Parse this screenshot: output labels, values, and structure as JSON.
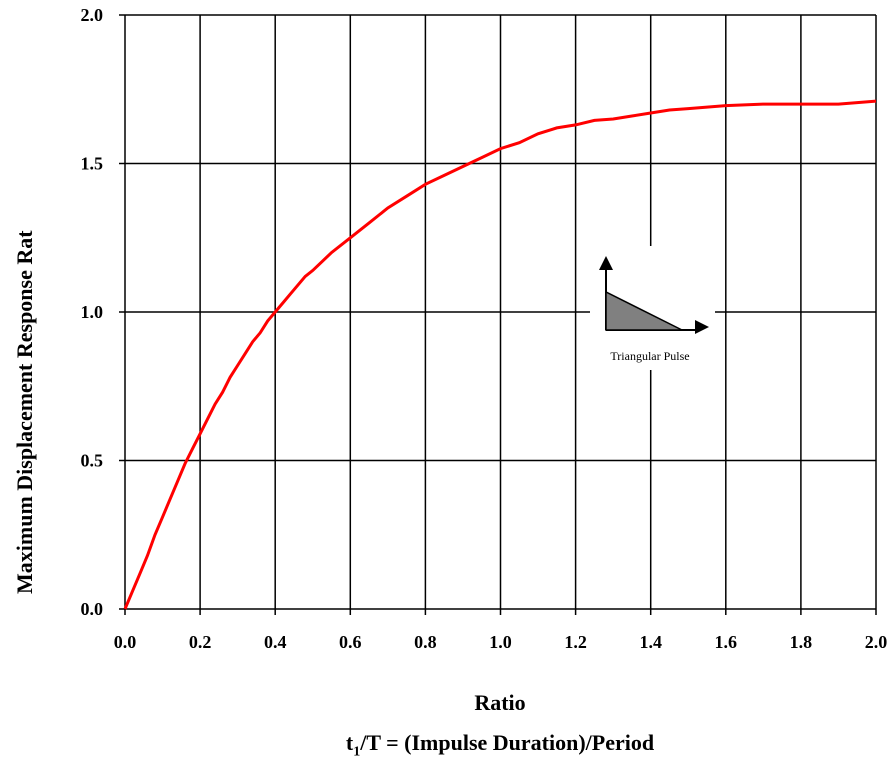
{
  "chart_data": {
    "type": "line",
    "title": "",
    "xlabel": "Ratio",
    "xlabel_line2": {
      "prefix": "t",
      "subscript": "1",
      "rest": "/T = (Impulse Duration)/Period"
    },
    "ylabel": "Maximum Displacement Response Rat",
    "xlim": [
      0,
      2
    ],
    "ylim": [
      0,
      2
    ],
    "x_ticks": [
      "0.0",
      "0.2",
      "0.4",
      "0.6",
      "0.8",
      "1.0",
      "1.2",
      "1.4",
      "1.6",
      "1.8",
      "2.0"
    ],
    "y_ticks": [
      "0.0",
      "0.5",
      "1.0",
      "1.5",
      "2.0"
    ],
    "grid": true,
    "series": [
      {
        "color": "#ff0000",
        "x": [
          0.0,
          0.02,
          0.04,
          0.06,
          0.08,
          0.1,
          0.12,
          0.14,
          0.16,
          0.18,
          0.2,
          0.22,
          0.24,
          0.26,
          0.28,
          0.3,
          0.32,
          0.34,
          0.36,
          0.38,
          0.4,
          0.42,
          0.44,
          0.46,
          0.48,
          0.5,
          0.55,
          0.6,
          0.65,
          0.7,
          0.75,
          0.8,
          0.85,
          0.9,
          0.95,
          1.0,
          1.05,
          1.1,
          1.15,
          1.2,
          1.25,
          1.3,
          1.35,
          1.4,
          1.45,
          1.5,
          1.55,
          1.6,
          1.7,
          1.8,
          1.9,
          1.95,
          2.0
        ],
        "y": [
          0.0,
          0.06,
          0.12,
          0.18,
          0.25,
          0.31,
          0.37,
          0.43,
          0.49,
          0.54,
          0.59,
          0.64,
          0.69,
          0.73,
          0.78,
          0.82,
          0.86,
          0.9,
          0.93,
          0.97,
          1.0,
          1.03,
          1.06,
          1.09,
          1.12,
          1.14,
          1.2,
          1.25,
          1.3,
          1.35,
          1.39,
          1.43,
          1.46,
          1.49,
          1.52,
          1.55,
          1.57,
          1.6,
          1.62,
          1.63,
          1.645,
          1.65,
          1.66,
          1.67,
          1.68,
          1.685,
          1.69,
          1.695,
          1.7,
          1.7,
          1.7,
          1.705,
          1.71
        ]
      }
    ],
    "inset": {
      "label": "Triangular Pulse",
      "fill_color": "#808080"
    }
  }
}
